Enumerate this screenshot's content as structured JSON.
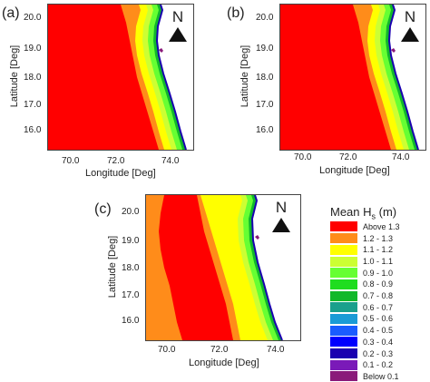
{
  "panels": [
    {
      "label": "(a)",
      "xlabel": "Longitude [Deg]",
      "ylabel": "Latitude [Deg]",
      "xticks": [
        "70.0",
        "72.0",
        "74.0"
      ],
      "yticks": [
        "20.0",
        "19.0",
        "18.0",
        "17.0",
        "16.0"
      ],
      "north": "N"
    },
    {
      "label": "(b)",
      "xlabel": "Longitude [Deg]",
      "ylabel": "Latitude [Deg]",
      "xticks": [
        "70.0",
        "72.0",
        "74.0"
      ],
      "yticks": [
        "20.0",
        "19.0",
        "18.0",
        "17.0",
        "16.0"
      ],
      "north": "N"
    },
    {
      "label": "(c)",
      "xlabel": "Longitude [Deg]",
      "ylabel": "Latitude [Deg]",
      "xticks": [
        "70.0",
        "72.0",
        "74.0"
      ],
      "yticks": [
        "20.0",
        "19.0",
        "18.0",
        "17.0",
        "16.0"
      ],
      "north": "N"
    }
  ],
  "legend": {
    "title_main": "Mean H",
    "title_sub": "s",
    "title_unit": " (m)",
    "items": [
      {
        "label": "Above 1.3",
        "color": "#ff0000"
      },
      {
        "label": "1.2 - 1.3",
        "color": "#ff8c1a"
      },
      {
        "label": "1.1 - 1.2",
        "color": "#ffff00"
      },
      {
        "label": "1.0 - 1.1",
        "color": "#ccff33"
      },
      {
        "label": "0.9 - 1.0",
        "color": "#66ff33"
      },
      {
        "label": "0.8 - 0.9",
        "color": "#1fdd1f"
      },
      {
        "label": "0.7 - 0.8",
        "color": "#11b82a"
      },
      {
        "label": "0.6 - 0.7",
        "color": "#1aa08c"
      },
      {
        "label": "0.5 - 0.6",
        "color": "#1a9bd6"
      },
      {
        "label": "0.4 - 0.5",
        "color": "#1a5cff"
      },
      {
        "label": "0.3 - 0.4",
        "color": "#0000ff"
      },
      {
        "label": "0.2 - 0.3",
        "color": "#1a00b0"
      },
      {
        "label": "0.1 - 0.2",
        "color": "#7a1ab8"
      },
      {
        "label": "Below 0.1",
        "color": "#8a1a7a"
      }
    ]
  },
  "colors": {
    "land": "#ffffff",
    "frame": "#444444"
  }
}
